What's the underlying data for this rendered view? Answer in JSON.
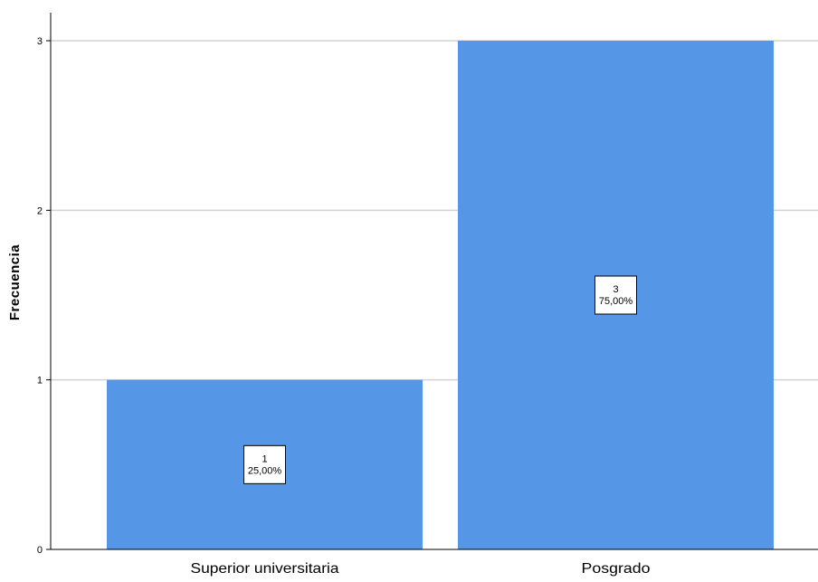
{
  "chart_data": {
    "type": "bar",
    "categories": [
      "Superior universitaria",
      "Posgrado"
    ],
    "values": [
      1,
      3
    ],
    "percent_labels": [
      "25,00%",
      "75,00%"
    ],
    "count_labels": [
      "1",
      "3"
    ],
    "title": "",
    "xlabel": "",
    "ylabel": "Frecuencia",
    "ylim": [
      0,
      3
    ],
    "yticks": [
      "0",
      "1",
      "2",
      "3"
    ],
    "grid": true,
    "bar_color": "#5596e6",
    "legend": "none"
  }
}
